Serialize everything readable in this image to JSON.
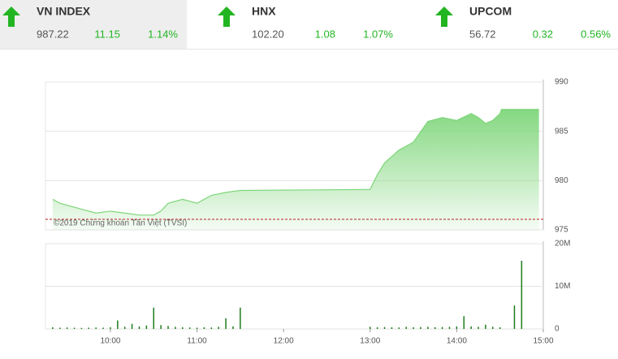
{
  "header": {
    "tickers": [
      {
        "name": "VN INDEX",
        "value": "987.22",
        "change": "11.15",
        "percent": "1.14%"
      },
      {
        "name": "HNX",
        "value": "102.20",
        "change": "1.08",
        "percent": "1.07%"
      },
      {
        "name": "UPCOM",
        "value": "56.72",
        "change": "0.32",
        "percent": "0.56%"
      }
    ]
  },
  "chart_data": [
    {
      "type": "area",
      "watermark": "©2019 Chứng khoán Tân Việt (TVSI)",
      "color": "#7ed67a",
      "x": [
        "09:20",
        "09:25",
        "09:30",
        "09:40",
        "09:50",
        "10:00",
        "10:10",
        "10:20",
        "10:30",
        "10:35",
        "10:40",
        "10:50",
        "11:00",
        "11:10",
        "11:20",
        "11:30",
        "13:00",
        "13:05",
        "13:10",
        "13:20",
        "13:30",
        "13:40",
        "13:50",
        "14:00",
        "14:10",
        "14:15",
        "14:20",
        "14:25",
        "14:30",
        "14:31",
        "14:45",
        "14:57"
      ],
      "values": [
        978.1,
        977.7,
        977.5,
        977.1,
        976.7,
        976.9,
        976.7,
        976.5,
        976.5,
        976.9,
        977.7,
        978.1,
        977.7,
        978.5,
        978.8,
        979.0,
        979.1,
        980.6,
        981.8,
        983.1,
        983.9,
        986.0,
        986.4,
        986.1,
        986.8,
        986.4,
        985.8,
        986.1,
        986.8,
        987.22,
        987.22,
        987.22
      ],
      "reference_value": 976.07,
      "reference_color": "#b22222",
      "xlim": [
        "09:15",
        "15:00"
      ],
      "ylim": [
        975,
        990
      ],
      "yticks": [
        975,
        980,
        985,
        990
      ],
      "grid": true
    },
    {
      "type": "bar",
      "color": "#1e7d1e",
      "x": [
        "09:20",
        "09:25",
        "09:30",
        "09:35",
        "09:40",
        "09:45",
        "09:50",
        "09:55",
        "10:00",
        "10:05",
        "10:10",
        "10:15",
        "10:20",
        "10:25",
        "10:30",
        "10:35",
        "10:40",
        "10:45",
        "10:50",
        "10:55",
        "11:00",
        "11:05",
        "11:10",
        "11:15",
        "11:20",
        "11:25",
        "11:30",
        "13:00",
        "13:05",
        "13:10",
        "13:15",
        "13:20",
        "13:25",
        "13:30",
        "13:35",
        "13:40",
        "13:45",
        "13:50",
        "13:55",
        "14:00",
        "14:05",
        "14:10",
        "14:15",
        "14:20",
        "14:25",
        "14:30",
        "14:40",
        "14:45"
      ],
      "values": [
        400000,
        300000,
        350000,
        300000,
        250000,
        300000,
        350000,
        300000,
        400000,
        2000000,
        500000,
        1200000,
        600000,
        800000,
        5000000,
        900000,
        700000,
        500000,
        400000,
        350000,
        300000,
        400000,
        350000,
        500000,
        2500000,
        600000,
        5000000,
        500000,
        400000,
        450000,
        400000,
        350000,
        500000,
        400000,
        450000,
        500000,
        400000,
        450000,
        500000,
        600000,
        3000000,
        600000,
        500000,
        1000000,
        500000,
        400000,
        5500000,
        16000000
      ],
      "xlim": [
        "09:15",
        "15:00"
      ],
      "xticks": [
        "10:00",
        "11:00",
        "12:00",
        "13:00",
        "14:00",
        "15:00"
      ],
      "ylim": [
        0,
        20000000
      ],
      "yticks": [
        0,
        {
          "value": 10000000,
          "label": "10M"
        },
        {
          "value": 20000000,
          "label": "20M"
        }
      ],
      "grid": true
    }
  ]
}
